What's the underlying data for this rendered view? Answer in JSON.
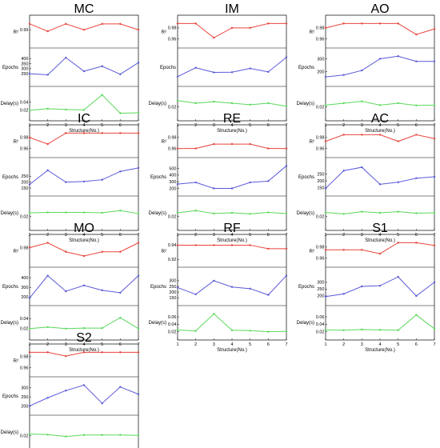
{
  "chart_data": [
    {
      "type": "line",
      "title": "MC",
      "x": [
        1,
        2,
        3,
        4,
        5,
        6,
        7
      ],
      "xlabel": "Structure(No.)",
      "rows": [
        {
          "ylabel": "R²",
          "color": "#e8463c",
          "ylim": [
            0.982,
            0.995
          ],
          "ticks": [
            0.99
          ],
          "values": [
            0.994,
            0.989,
            0.994,
            0.99,
            0.994,
            0.994,
            0.99
          ]
        },
        {
          "ylabel": "Epochs",
          "color": "#5a5ad8",
          "ylim": [
            180,
            450
          ],
          "ticks": [
            250,
            300,
            350,
            400
          ],
          "values": [
            250,
            240,
            410,
            275,
            325,
            245,
            360
          ]
        },
        {
          "ylabel": "Delay(s)",
          "color": "#5bd85b",
          "ylim": [
            0.01,
            0.065
          ],
          "ticks": [
            0.02,
            0.04
          ],
          "values": [
            0.02,
            0.024,
            0.022,
            0.021,
            0.058,
            0.013,
            0.014
          ]
        }
      ]
    },
    {
      "type": "line",
      "title": "IM",
      "x": [
        1,
        2,
        3,
        4,
        5,
        6,
        7
      ],
      "xlabel": "Structure(No.)",
      "rows": [
        {
          "ylabel": "R²",
          "color": "#e8463c",
          "ylim": [
            0.955,
            0.99
          ],
          "ticks": [
            0.96,
            0.98
          ],
          "values": [
            0.988,
            0.988,
            0.962,
            0.98,
            0.98,
            0.988,
            0.988
          ]
        },
        {
          "ylabel": "Epochs",
          "color": "#5a5ad8",
          "ylim": [
            200,
            460
          ],
          "ticks": [],
          "values": [
            240,
            325,
            280,
            282,
            318,
            285,
            425
          ]
        },
        {
          "ylabel": "Delay(s)",
          "color": "#5bd85b",
          "ylim": [
            0.0,
            0.06
          ],
          "ticks": [
            0.02
          ],
          "values": [
            0.037,
            0.03,
            0.034,
            0.03,
            0.026,
            0.03,
            0.022
          ]
        }
      ]
    },
    {
      "type": "line",
      "title": "AO",
      "x": [
        1,
        2,
        3,
        4,
        5,
        6,
        7
      ],
      "xlabel": "Structure(No.)",
      "rows": [
        {
          "ylabel": "R²",
          "color": "#e8463c",
          "ylim": [
            0.955,
            0.99
          ],
          "ticks": [
            0.96,
            0.98
          ],
          "values": [
            0.98,
            0.988,
            0.988,
            0.988,
            0.988,
            0.968,
            0.978
          ]
        },
        {
          "ylabel": "Epochs",
          "color": "#5a5ad8",
          "ylim": [
            130,
            340
          ],
          "ticks": [
            200,
            300
          ],
          "values": [
            160,
            175,
            210,
            300,
            320,
            280,
            280
          ]
        },
        {
          "ylabel": "Delay(s)",
          "color": "#5bd85b",
          "ylim": [
            0.0,
            0.06
          ],
          "ticks": [
            0.02
          ],
          "values": [
            0.025,
            0.03,
            0.035,
            0.025,
            0.03,
            0.024,
            0.025
          ]
        }
      ]
    },
    {
      "type": "line",
      "title": "IC",
      "x": [
        1,
        2,
        3,
        4,
        5,
        6,
        7
      ],
      "xlabel": "Structure(No.)",
      "rows": [
        {
          "ylabel": "R²",
          "color": "#e8463c",
          "ylim": [
            0.955,
            0.99
          ],
          "ticks": [
            0.96,
            0.98
          ],
          "values": [
            0.98,
            0.968,
            0.988,
            0.988,
            0.988,
            0.988,
            0.988
          ]
        },
        {
          "ylabel": "Epochs",
          "color": "#5a5ad8",
          "ylim": [
            130,
            360
          ],
          "ticks": [
            150,
            200,
            250
          ],
          "values": [
            180,
            300,
            200,
            205,
            220,
            290,
            320
          ]
        },
        {
          "ylabel": "Delay(s)",
          "color": "#5bd85b",
          "ylim": [
            0.0,
            0.06
          ],
          "ticks": [
            0.02
          ],
          "values": [
            0.03,
            0.031,
            0.031,
            0.031,
            0.03,
            0.036,
            0.028
          ]
        }
      ]
    },
    {
      "type": "line",
      "title": "RE",
      "x": [
        1,
        2,
        3,
        4,
        5,
        6,
        7
      ],
      "xlabel": "Structure(No.)",
      "rows": [
        {
          "ylabel": "R²",
          "color": "#e8463c",
          "ylim": [
            0.955,
            0.99
          ],
          "ticks": [
            0.96,
            0.98
          ],
          "values": [
            0.96,
            0.96,
            0.968,
            0.968,
            0.968,
            0.96,
            0.96
          ]
        },
        {
          "ylabel": "Epochs",
          "color": "#5a5ad8",
          "ylim": [
            170,
            580
          ],
          "ticks": [
            200,
            300,
            400,
            500
          ],
          "values": [
            265,
            290,
            200,
            200,
            290,
            310,
            540
          ]
        },
        {
          "ylabel": "Delay(s)",
          "color": "#5bd85b",
          "ylim": [
            0.0,
            0.06
          ],
          "ticks": [
            0.02
          ],
          "values": [
            0.03,
            0.036,
            0.028,
            0.03,
            0.027,
            0.031,
            0.028
          ]
        }
      ]
    },
    {
      "type": "line",
      "title": "AC",
      "x": [
        1,
        2,
        3,
        4,
        5,
        6,
        7
      ],
      "xlabel": "Structure(No.)",
      "rows": [
        {
          "ylabel": "R²",
          "color": "#e8463c",
          "ylim": [
            0.955,
            0.99
          ],
          "ticks": [
            0.96,
            0.98
          ],
          "values": [
            0.973,
            0.985,
            0.985,
            0.985,
            0.973,
            0.985,
            0.978
          ]
        },
        {
          "ylabel": "Epochs",
          "color": "#5a5ad8",
          "ylim": [
            130,
            330
          ],
          "ticks": [
            150,
            200,
            250
          ],
          "values": [
            145,
            275,
            300,
            175,
            190,
            220,
            230
          ]
        },
        {
          "ylabel": "Delay(s)",
          "color": "#5bd85b",
          "ylim": [
            0.0,
            0.06
          ],
          "ticks": [
            0.02
          ],
          "values": [
            0.031,
            0.027,
            0.033,
            0.03,
            0.033,
            0.029,
            0.03
          ]
        }
      ]
    },
    {
      "type": "line",
      "title": "MO",
      "x": [
        1,
        2,
        3,
        4,
        5,
        6,
        7
      ],
      "xlabel": "Structure(No.)",
      "rows": [
        {
          "ylabel": "R²",
          "color": "#e8463c",
          "ylim": [
            0.958,
            0.99
          ],
          "ticks": [
            0.98
          ],
          "values": [
            0.98,
            0.988,
            0.973,
            0.966,
            0.973,
            0.973,
            0.988
          ]
        },
        {
          "ylabel": "Epochs",
          "color": "#5a5ad8",
          "ylim": [
            170,
            450
          ],
          "ticks": [
            200,
            300,
            400
          ],
          "values": [
            190,
            420,
            260,
            320,
            270,
            245,
            420
          ]
        },
        {
          "ylabel": "Delay(s)",
          "color": "#5bd85b",
          "ylim": [
            0.01,
            0.055
          ],
          "ticks": [
            0.02,
            0.04
          ],
          "values": [
            0.02,
            0.023,
            0.02,
            0.021,
            0.021,
            0.042,
            0.02
          ]
        }
      ]
    },
    {
      "type": "line",
      "title": "RF",
      "x": [
        1,
        2,
        3,
        4,
        5,
        6,
        7
      ],
      "xlabel": "Structure(No.)",
      "rows": [
        {
          "ylabel": "R²",
          "color": "#e8463c",
          "ylim": [
            0.918,
            0.945
          ],
          "ticks": [
            0.92,
            0.94
          ],
          "values": [
            0.94,
            0.94,
            0.94,
            0.94,
            0.94,
            0.935,
            0.935
          ]
        },
        {
          "ylabel": "Epochs",
          "color": "#5a5ad8",
          "ylim": [
            130,
            370
          ],
          "ticks": [
            150,
            200,
            250,
            300
          ],
          "values": [
            240,
            180,
            300,
            245,
            230,
            175,
            345
          ]
        },
        {
          "ylabel": "Delay(s)",
          "color": "#5bd85b",
          "ylim": [
            0.015,
            0.075
          ],
          "ticks": [
            0.02,
            0.04,
            0.06
          ],
          "values": [
            0.025,
            0.022,
            0.068,
            0.024,
            0.023,
            0.02,
            0.021
          ]
        }
      ]
    },
    {
      "type": "line",
      "title": "S1",
      "x": [
        1,
        2,
        3,
        4,
        5,
        6,
        7
      ],
      "xlabel": "Structure(No.)",
      "rows": [
        {
          "ylabel": "R²",
          "color": "#e8463c",
          "ylim": [
            0.955,
            0.99
          ],
          "ticks": [
            0.96,
            0.98
          ],
          "values": [
            0.975,
            0.975,
            0.975,
            0.968,
            0.988,
            0.988,
            0.983
          ]
        },
        {
          "ylabel": "Epochs",
          "color": "#5a5ad8",
          "ylim": [
            170,
            370
          ],
          "ticks": [
            200,
            250,
            300
          ],
          "values": [
            195,
            215,
            270,
            275,
            340,
            200,
            300
          ]
        },
        {
          "ylabel": "Delay(s)",
          "color": "#5bd85b",
          "ylim": [
            0.015,
            0.075
          ],
          "ticks": [
            0.02,
            0.04,
            0.06
          ],
          "values": [
            0.025,
            0.024,
            0.026,
            0.025,
            0.024,
            0.065,
            0.028
          ]
        }
      ]
    },
    {
      "type": "line",
      "title": "S2",
      "x": [
        1,
        2,
        3,
        4,
        5,
        6,
        7
      ],
      "xlabel": "Structure(No.)",
      "rows": [
        {
          "ylabel": "R²",
          "color": "#e8463c",
          "ylim": [
            0.955,
            0.99
          ],
          "ticks": [
            0.96,
            0.98
          ],
          "values": [
            0.988,
            0.988,
            0.981,
            0.988,
            0.988,
            0.988,
            0.988
          ]
        },
        {
          "ylabel": "Epochs",
          "color": "#5a5ad8",
          "ylim": [
            180,
            330
          ],
          "ticks": [
            200,
            250,
            300
          ],
          "values": [
            200,
            245,
            285,
            315,
            215,
            305,
            265
          ]
        },
        {
          "ylabel": "Delay(s)",
          "color": "#5bd85b",
          "ylim": [
            0.0,
            0.06
          ],
          "ticks": [
            0.02
          ],
          "values": [
            0.025,
            0.023,
            0.018,
            0.022,
            0.022,
            0.022,
            0.021
          ]
        }
      ]
    }
  ]
}
